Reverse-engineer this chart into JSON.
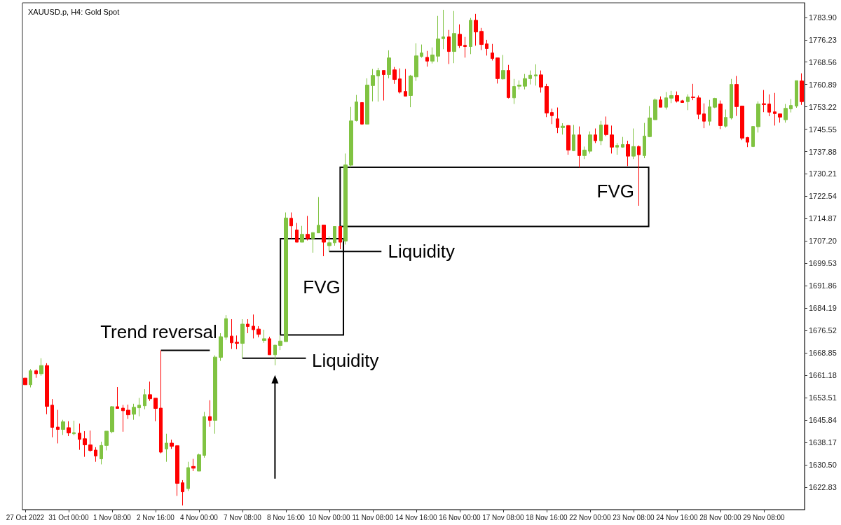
{
  "chart_data": {
    "type": "candlestick",
    "title": "XAUUSD.p, H4: Gold Spot",
    "categories": [
      "27 Oct 2022",
      null,
      null,
      null,
      null,
      null,
      null,
      null,
      "31 Oct 00:00",
      null,
      null,
      null,
      null,
      null,
      null,
      null,
      "1 Nov 08:00",
      null,
      null,
      null,
      null,
      null,
      null,
      null,
      "2 Nov 16:00",
      null,
      null,
      null,
      null,
      null,
      null,
      null,
      "4 Nov 00:00",
      null,
      null,
      null,
      null,
      null,
      null,
      null,
      "7 Nov 08:00",
      null,
      null,
      null,
      null,
      null,
      null,
      null,
      "8 Nov 16:00",
      null,
      null,
      null,
      null,
      null,
      null,
      null,
      "10 Nov 00:00",
      null,
      null,
      null,
      null,
      null,
      null,
      null,
      "11 Nov 08:00",
      null,
      null,
      null,
      null,
      null,
      null,
      null,
      "14 Nov 16:00",
      null,
      null,
      null,
      null,
      null,
      null,
      null,
      "16 Nov 00:00",
      null,
      null,
      null,
      null,
      null,
      null,
      null,
      "17 Nov 08:00",
      null,
      null,
      null,
      null,
      null,
      null,
      null,
      "18 Nov 16:00",
      null,
      null,
      null,
      null,
      null,
      null,
      null,
      "22 Nov 00:00",
      null,
      null,
      null,
      null,
      null,
      null,
      null,
      "23 Nov 08:00",
      null,
      null,
      null,
      null,
      null,
      null,
      null,
      "24 Nov 16:00",
      null,
      null,
      null,
      null,
      null,
      null,
      null,
      "28 Nov 00:00",
      null,
      null,
      null,
      null,
      null,
      null,
      null,
      "29 Nov 08:00",
      null,
      null,
      null,
      null,
      null,
      null,
      null
    ],
    "ohlc": [
      [
        1660.2,
        1660.2,
        1657.9,
        1657.9
      ],
      [
        1657.9,
        1663.3,
        1657.0,
        1662.7
      ],
      [
        1662.7,
        1663.2,
        1660.3,
        1661.7
      ],
      [
        1661.7,
        1667.0,
        1661.0,
        1664.5
      ],
      [
        1664.5,
        1665.3,
        1647.8,
        1650.5
      ],
      [
        1650.9,
        1653.0,
        1639.9,
        1643.3
      ],
      [
        1643.4,
        1649.3,
        1637.8,
        1642.6
      ],
      [
        1642.6,
        1645.9,
        1640.7,
        1645.2
      ],
      [
        1643.2,
        1645.4,
        1640.3,
        1641.4
      ],
      [
        1641.1,
        1645.6,
        1640.6,
        1641.5
      ],
      [
        1641.3,
        1644.6,
        1635.6,
        1639.2
      ],
      [
        1639.4,
        1642.0,
        1633.2,
        1637.3
      ],
      [
        1637.3,
        1642.2,
        1634.9,
        1635.4
      ],
      [
        1635.5,
        1636.5,
        1631.5,
        1633.5
      ],
      [
        1632.5,
        1638.4,
        1630.6,
        1637.1
      ],
      [
        1637.1,
        1642.0,
        1635.4,
        1642.0
      ],
      [
        1641.8,
        1650.6,
        1641.3,
        1650.4
      ],
      [
        1650.4,
        1657.1,
        1649.8,
        1649.8
      ],
      [
        1649.9,
        1651.0,
        1641.8,
        1649.0
      ],
      [
        1649.2,
        1651.1,
        1646.2,
        1647.6
      ],
      [
        1647.8,
        1651.4,
        1645.9,
        1650.2
      ],
      [
        1650.0,
        1653.4,
        1647.1,
        1650.9
      ],
      [
        1650.7,
        1656.4,
        1649.5,
        1654.5
      ],
      [
        1654.5,
        1659.0,
        1652.4,
        1653.1
      ],
      [
        1653.3,
        1653.3,
        1645.4,
        1649.8
      ],
      [
        1649.9,
        1669.7,
        1634.4,
        1634.8
      ],
      [
        1635.9,
        1641.1,
        1631.5,
        1637.9
      ],
      [
        1637.9,
        1639.1,
        1635.9,
        1636.8
      ],
      [
        1637.0,
        1637.0,
        1619.8,
        1624.1
      ],
      [
        1624.3,
        1625.2,
        1616.5,
        1621.2
      ],
      [
        1622.3,
        1631.5,
        1621.5,
        1629.5
      ],
      [
        1629.9,
        1632.5,
        1628.3,
        1629.3
      ],
      [
        1628.3,
        1634.3,
        1628.3,
        1633.9
      ],
      [
        1633.7,
        1648.6,
        1632.9,
        1647.0
      ],
      [
        1647.0,
        1652.6,
        1643.5,
        1645.7
      ],
      [
        1645.7,
        1668.0,
        1641.1,
        1667.4
      ],
      [
        1667.3,
        1675.6,
        1666.1,
        1674.4
      ],
      [
        1674.2,
        1681.8,
        1673.3,
        1680.6
      ],
      [
        1674.6,
        1680.4,
        1670.2,
        1672.3
      ],
      [
        1672.5,
        1674.8,
        1670.1,
        1672.1
      ],
      [
        1672.1,
        1680.4,
        1667.0,
        1678.7
      ],
      [
        1678.7,
        1680.4,
        1675.6,
        1677.9
      ],
      [
        1678.0,
        1682.0,
        1673.8,
        1676.8
      ],
      [
        1677.0,
        1678.0,
        1674.2,
        1675.2
      ],
      [
        1673.1,
        1676.8,
        1672.3,
        1673.7
      ],
      [
        1673.7,
        1674.4,
        1668.2,
        1668.2
      ],
      [
        1668.2,
        1671.5,
        1664.6,
        1671.5
      ],
      [
        1671.4,
        1675.0,
        1669.8,
        1672.9
      ],
      [
        1672.7,
        1717.0,
        1672.7,
        1715.1
      ],
      [
        1715.0,
        1717.0,
        1708.0,
        1712.4
      ],
      [
        1711.0,
        1713.4,
        1706.8,
        1706.8
      ],
      [
        1706.8,
        1712.4,
        1706.8,
        1709.5
      ],
      [
        1709.5,
        1715.8,
        1707.4,
        1708.1
      ],
      [
        1708.0,
        1710.1,
        1703.2,
        1710.1
      ],
      [
        1710.0,
        1722.3,
        1710.0,
        1712.6
      ],
      [
        1712.7,
        1712.7,
        1702.0,
        1706.8
      ],
      [
        1705.6,
        1708.8,
        1703.6,
        1706.6
      ],
      [
        1706.6,
        1712.2,
        1705.6,
        1712.2
      ],
      [
        1712.2,
        1712.2,
        1704.4,
        1706.8
      ],
      [
        1707.2,
        1737.2,
        1706.0,
        1733.3
      ],
      [
        1733.2,
        1753.2,
        1732.5,
        1748.4
      ],
      [
        1748.5,
        1757.3,
        1748.2,
        1754.9
      ],
      [
        1754.7,
        1754.7,
        1747.1,
        1747.3
      ],
      [
        1747.3,
        1763.0,
        1747.3,
        1760.7
      ],
      [
        1760.5,
        1766.2,
        1755.1,
        1764.0
      ],
      [
        1763.8,
        1766.6,
        1755.0,
        1765.7
      ],
      [
        1765.7,
        1765.7,
        1755.4,
        1764.3
      ],
      [
        1764.3,
        1772.6,
        1763.0,
        1770.0
      ],
      [
        1765.9,
        1766.9,
        1761.1,
        1762.6
      ],
      [
        1762.8,
        1766.4,
        1757.8,
        1758.3
      ],
      [
        1758.5,
        1766.2,
        1756.9,
        1756.9
      ],
      [
        1757.1,
        1764.2,
        1753.1,
        1763.8
      ],
      [
        1763.5,
        1775.0,
        1762.1,
        1770.7
      ],
      [
        1770.5,
        1774.6,
        1770.1,
        1771.7
      ],
      [
        1770.2,
        1772.4,
        1767.0,
        1768.9
      ],
      [
        1768.9,
        1773.6,
        1768.1,
        1771.0
      ],
      [
        1770.6,
        1784.4,
        1768.6,
        1776.5
      ],
      [
        1776.6,
        1786.5,
        1773.0,
        1777.2
      ],
      [
        1777.2,
        1779.6,
        1767.9,
        1772.2
      ],
      [
        1772.2,
        1786.1,
        1768.2,
        1778.4
      ],
      [
        1778.1,
        1781.5,
        1773.4,
        1774.2
      ],
      [
        1774.3,
        1777.2,
        1770.1,
        1773.9
      ],
      [
        1773.9,
        1783.7,
        1771.3,
        1782.9
      ],
      [
        1782.9,
        1785.1,
        1774.2,
        1778.9
      ],
      [
        1779.1,
        1780.3,
        1772.7,
        1774.6
      ],
      [
        1774.8,
        1776.2,
        1770.8,
        1773.2
      ],
      [
        1771.7,
        1774.8,
        1769.1,
        1769.8
      ],
      [
        1770.0,
        1770.0,
        1761.2,
        1762.9
      ],
      [
        1762.8,
        1771.0,
        1762.6,
        1765.7
      ],
      [
        1765.7,
        1767.6,
        1756.1,
        1756.4
      ],
      [
        1756.3,
        1762.8,
        1754.2,
        1760.2
      ],
      [
        1760.3,
        1762.3,
        1759.2,
        1760.7
      ],
      [
        1760.3,
        1764.5,
        1759.2,
        1762.9
      ],
      [
        1762.9,
        1765.7,
        1760.9,
        1764.1
      ],
      [
        1763.8,
        1767.8,
        1760.5,
        1764.2
      ],
      [
        1764.2,
        1765.7,
        1758.1,
        1760.0
      ],
      [
        1760.2,
        1761.1,
        1749.7,
        1751.1
      ],
      [
        1751.3,
        1752.6,
        1747.3,
        1750.2
      ],
      [
        1749.1,
        1753.0,
        1744.2,
        1746.1
      ],
      [
        1746.1,
        1747.6,
        1743.7,
        1746.6
      ],
      [
        1746.8,
        1747.0,
        1736.8,
        1738.4
      ],
      [
        1738.2,
        1747.0,
        1738.0,
        1743.6
      ],
      [
        1743.6,
        1746.5,
        1732.4,
        1736.5
      ],
      [
        1736.5,
        1739.6,
        1735.3,
        1738.4
      ],
      [
        1738.0,
        1744.8,
        1737.2,
        1743.6
      ],
      [
        1743.6,
        1745.8,
        1740.8,
        1741.6
      ],
      [
        1741.6,
        1748.4,
        1740.1,
        1747.0
      ],
      [
        1747.0,
        1749.9,
        1743.2,
        1743.7
      ],
      [
        1743.6,
        1746.8,
        1737.2,
        1739.4
      ],
      [
        1739.4,
        1740.8,
        1736.8,
        1740.0
      ],
      [
        1739.4,
        1742.9,
        1739.2,
        1740.3
      ],
      [
        1740.3,
        1741.6,
        1732.9,
        1736.3
      ],
      [
        1736.3,
        1745.8,
        1735.3,
        1739.6
      ],
      [
        1739.6,
        1740.0,
        1719.3,
        1736.8
      ],
      [
        1736.5,
        1747.7,
        1735.6,
        1743.2
      ],
      [
        1743.0,
        1753.5,
        1742.8,
        1749.4
      ],
      [
        1748.8,
        1756.1,
        1748.8,
        1755.6
      ],
      [
        1755.6,
        1756.8,
        1753.1,
        1753.1
      ],
      [
        1753.1,
        1758.3,
        1752.3,
        1756.3
      ],
      [
        1756.2,
        1758.7,
        1754.5,
        1757.1
      ],
      [
        1757.1,
        1758.5,
        1754.7,
        1755.2
      ],
      [
        1755.3,
        1755.6,
        1754.7,
        1754.7
      ],
      [
        1755.0,
        1757.5,
        1752.1,
        1756.6
      ],
      [
        1756.6,
        1761.1,
        1755.5,
        1756.4
      ],
      [
        1756.3,
        1757.1,
        1749.0,
        1750.7
      ],
      [
        1750.8,
        1754.4,
        1745.9,
        1748.3
      ],
      [
        1748.3,
        1755.6,
        1746.8,
        1753.2
      ],
      [
        1753.1,
        1756.3,
        1752.8,
        1756.1
      ],
      [
        1754.2,
        1755.4,
        1745.6,
        1746.8
      ],
      [
        1746.6,
        1752.3,
        1746.1,
        1749.6
      ],
      [
        1749.4,
        1762.8,
        1748.9,
        1760.9
      ],
      [
        1760.9,
        1763.8,
        1750.1,
        1753.3
      ],
      [
        1753.5,
        1753.5,
        1741.8,
        1742.5
      ],
      [
        1742.7,
        1742.9,
        1739.4,
        1741.1
      ],
      [
        1739.6,
        1746.5,
        1739.4,
        1746.5
      ],
      [
        1746.4,
        1755.1,
        1744.4,
        1754.2
      ],
      [
        1754.3,
        1759.0,
        1751.4,
        1754.0
      ],
      [
        1754.2,
        1757.5,
        1750.0,
        1751.4
      ],
      [
        1751.5,
        1758.0,
        1746.8,
        1750.9
      ],
      [
        1750.8,
        1750.8,
        1747.8,
        1749.7
      ],
      [
        1748.8,
        1754.2,
        1747.8,
        1752.7
      ],
      [
        1752.5,
        1755.9,
        1751.3,
        1753.7
      ],
      [
        1753.5,
        1762.2,
        1752.9,
        1762.2
      ],
      [
        1762.1,
        1764.7,
        1753.9,
        1755.0
      ]
    ],
    "colors": [
      "#ff0000",
      "#80c342",
      "#ff0000",
      "#80c342",
      "#ff0000",
      "#ff0000",
      "#ff0000",
      "#80c342",
      "#ff0000",
      "#80c342",
      "#ff0000",
      "#ff0000",
      "#ff0000",
      "#ff0000",
      "#80c342",
      "#80c342",
      "#80c342",
      "#ff0000",
      "#ff0000",
      "#ff0000",
      "#80c342",
      "#80c342",
      "#80c342",
      "#ff0000",
      "#ff0000",
      "#ff0000",
      "#80c342",
      "#ff0000",
      "#ff0000",
      "#ff0000",
      "#80c342",
      "#ff0000",
      "#80c342",
      "#80c342",
      "#ff0000",
      "#80c342",
      "#80c342",
      "#80c342",
      "#ff0000",
      "#ff0000",
      "#80c342",
      "#ff0000",
      "#ff0000",
      "#ff0000",
      "#80c342",
      "#ff0000",
      "#80c342",
      "#80c342",
      "#80c342",
      "#ff0000",
      "#ff0000",
      "#80c342",
      "#ff0000",
      "#80c342",
      "#80c342",
      "#ff0000",
      "#80c342",
      "#80c342",
      "#ff0000",
      "#80c342",
      "#80c342",
      "#80c342",
      "#ff0000",
      "#80c342",
      "#80c342",
      "#80c342",
      "#ff0000",
      "#80c342",
      "#ff0000",
      "#ff0000",
      "#ff0000",
      "#80c342",
      "#80c342",
      "#80c342",
      "#ff0000",
      "#80c342",
      "#80c342",
      "#80c342",
      "#ff0000",
      "#80c342",
      "#ff0000",
      "#ff0000",
      "#80c342",
      "#ff0000",
      "#ff0000",
      "#ff0000",
      "#ff0000",
      "#ff0000",
      "#80c342",
      "#ff0000",
      "#80c342",
      "#80c342",
      "#80c342",
      "#80c342",
      "#80c342",
      "#ff0000",
      "#ff0000",
      "#ff0000",
      "#ff0000",
      "#80c342",
      "#ff0000",
      "#80c342",
      "#ff0000",
      "#80c342",
      "#80c342",
      "#ff0000",
      "#80c342",
      "#ff0000",
      "#ff0000",
      "#80c342",
      "#80c342",
      "#ff0000",
      "#80c342",
      "#ff0000",
      "#80c342",
      "#80c342",
      "#80c342",
      "#ff0000",
      "#80c342",
      "#80c342",
      "#ff0000",
      "#ff0000",
      "#80c342",
      "#ff0000",
      "#ff0000",
      "#ff0000",
      "#80c342",
      "#80c342",
      "#ff0000",
      "#80c342",
      "#80c342",
      "#ff0000",
      "#ff0000",
      "#ff0000",
      "#80c342",
      "#80c342",
      "#ff0000",
      "#ff0000",
      "#ff0000",
      "#ff0000",
      "#80c342",
      "#80c342",
      "#80c342",
      "#ff0000"
    ],
    "ylim": [
      1615.1,
      1788.9
    ],
    "yticks": [
      1622.83,
      {
        "value": 1630.5,
        "label": "1630.50"
      },
      1638.17,
      1645.84,
      1653.51,
      1661.18,
      1668.85,
      1676.52,
      1684.19,
      1691.86,
      1699.53,
      {
        "value": 1707.2,
        "label": "1707.20"
      },
      1714.87,
      1722.54,
      1730.21,
      1737.88,
      1745.55,
      1753.22,
      1760.89,
      1768.56,
      1776.23,
      {
        "value": 1783.9,
        "label": "1783.90"
      }
    ],
    "annotations": [
      {
        "text": "Trend reversal",
        "y": 1669.7
      },
      {
        "text": "Liquidity",
        "x": "7 Nov 08:00",
        "y": 1667.0
      },
      "FVG",
      {
        "text": "Liquidity",
        "x": "10 Nov 00:00",
        "y": 1703.6
      },
      "FVG"
    ]
  }
}
